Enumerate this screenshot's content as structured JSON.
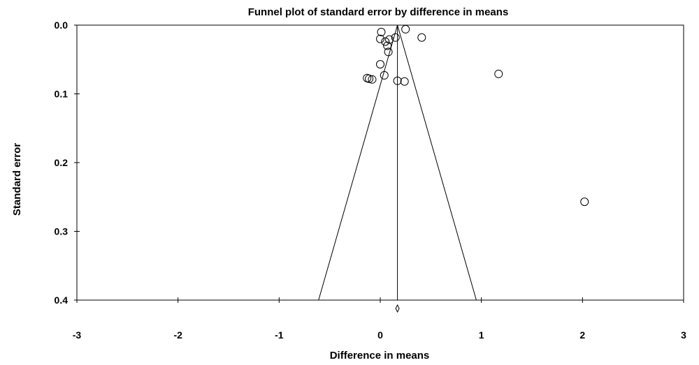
{
  "chart_data": {
    "type": "scatter",
    "title": "Funnel plot of standard error by difference in means",
    "xlabel": "Difference in means",
    "ylabel": "Standard error",
    "xlim": [
      -3,
      3
    ],
    "ylim": [
      0.0,
      0.4
    ],
    "y_inverted": true,
    "x_ticks": [
      "-3",
      "-2",
      "-1",
      "0",
      "1",
      "2",
      "3"
    ],
    "y_ticks": [
      "0.0",
      "0.1",
      "0.2",
      "0.3",
      "0.4"
    ],
    "grid": false,
    "legend": "none",
    "summary_effect": 0.17,
    "funnel": {
      "apex": [
        0.17,
        0.0
      ],
      "left_base": [
        -0.61,
        0.4
      ],
      "right_base": [
        0.95,
        0.4
      ]
    },
    "points": [
      {
        "x": 0.25,
        "y": 0.006
      },
      {
        "x": 0.01,
        "y": 0.01
      },
      {
        "x": 0.41,
        "y": 0.018
      },
      {
        "x": 0.15,
        "y": 0.018
      },
      {
        "x": 0.0,
        "y": 0.02
      },
      {
        "x": 0.09,
        "y": 0.021
      },
      {
        "x": 0.05,
        "y": 0.024
      },
      {
        "x": 0.07,
        "y": 0.03
      },
      {
        "x": 0.08,
        "y": 0.039
      },
      {
        "x": 0.0,
        "y": 0.057
      },
      {
        "x": 1.17,
        "y": 0.071
      },
      {
        "x": 0.04,
        "y": 0.073
      },
      {
        "x": -0.13,
        "y": 0.077
      },
      {
        "x": -0.11,
        "y": 0.078
      },
      {
        "x": -0.08,
        "y": 0.079
      },
      {
        "x": 0.17,
        "y": 0.081
      },
      {
        "x": 0.24,
        "y": 0.082
      },
      {
        "x": 2.02,
        "y": 0.257
      }
    ]
  }
}
